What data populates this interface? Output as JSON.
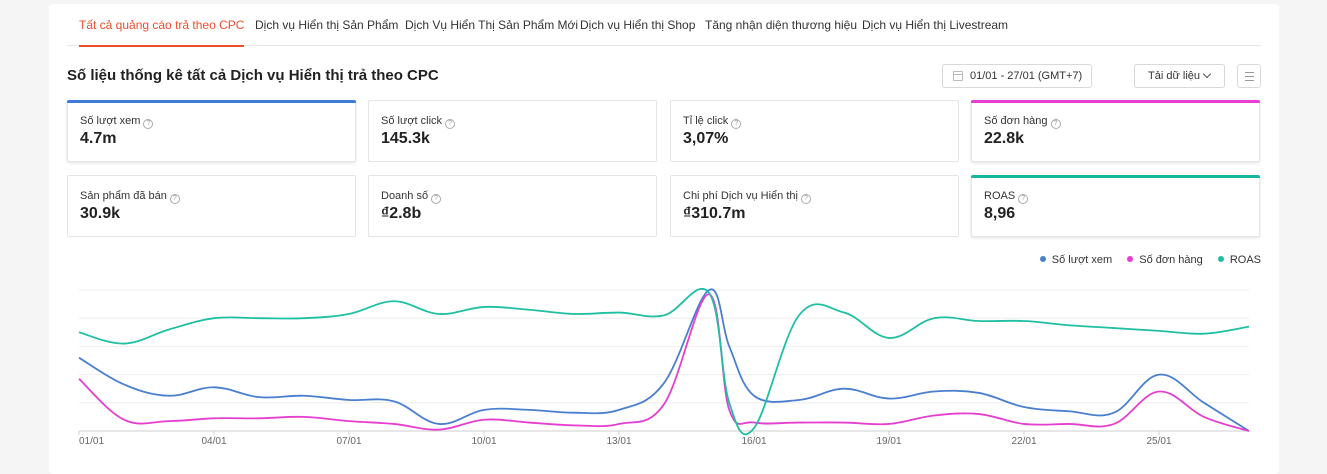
{
  "tabs": [
    {
      "label": "Tất cả quảng cáo trả theo CPC"
    },
    {
      "label": "Dịch vụ Hiển thị Sản Phẩm"
    },
    {
      "label": "Dịch Vụ Hiển Thị Sản Phẩm Mới"
    },
    {
      "label": "Dịch vụ Hiển thị Shop"
    },
    {
      "label": "Tăng nhận diện thương hiệu"
    },
    {
      "label": "Dịch vụ Hiển thị Livestream"
    }
  ],
  "header": {
    "title": "Số liệu thống kê tất cả Dịch vụ Hiển thị trả theo CPC",
    "date_range": "01/01 - 27/01 (GMT+7)",
    "download_label": "Tải dữ liệu"
  },
  "metrics": [
    {
      "label": "Số lượt xem",
      "value": "4.7m",
      "selected": true,
      "color": "#3b7dd8"
    },
    {
      "label": "Số lượt click",
      "value": "145.3k",
      "selected": false
    },
    {
      "label": "Tỉ lệ click",
      "value": "3,07%",
      "selected": false
    },
    {
      "label": "Số đơn hàng",
      "value": "22.8k",
      "selected": true,
      "color": "#e83fd0"
    },
    {
      "label": "Sản phẩm đã bán",
      "value": "30.9k",
      "selected": false
    },
    {
      "label": "Doanh số",
      "value": "₫2.8b",
      "selected": false
    },
    {
      "label": "Chi phí Dịch vụ Hiển thị",
      "value": "₫310.7m",
      "selected": false
    },
    {
      "label": "ROAS",
      "value": "8,96",
      "selected": true,
      "color": "#14b89c"
    }
  ],
  "chart_data": {
    "type": "line",
    "x": [
      "01/01",
      "02/01",
      "03/01",
      "04/01",
      "05/01",
      "06/01",
      "07/01",
      "08/01",
      "09/01",
      "10/01",
      "11/01",
      "12/01",
      "13/01",
      "14/01",
      "15/01",
      "15/01",
      "16/01",
      "17/01",
      "18/01",
      "19/01",
      "20/01",
      "21/01",
      "22/01",
      "23/01",
      "24/01",
      "25/01",
      "26/01",
      "27/01"
    ],
    "x_ticks": [
      "01/01",
      "04/01",
      "07/01",
      "10/01",
      "13/01",
      "16/01",
      "19/01",
      "22/01",
      "25/01"
    ],
    "series": [
      {
        "name": "Số lượt xem",
        "color": "#4a7fd0",
        "values": [
          0.52,
          0.33,
          0.25,
          0.31,
          0.24,
          0.25,
          0.22,
          0.21,
          0.05,
          0.15,
          0.15,
          0.13,
          0.15,
          0.34,
          1.0,
          0.6,
          0.25,
          0.22,
          0.3,
          0.23,
          0.28,
          0.27,
          0.17,
          0.14,
          0.13,
          0.4,
          0.2,
          0.0
        ]
      },
      {
        "name": "Số đơn hàng",
        "color": "#e63fcf",
        "values": [
          0.37,
          0.08,
          0.07,
          0.09,
          0.09,
          0.1,
          0.07,
          0.05,
          0.01,
          0.08,
          0.06,
          0.04,
          0.05,
          0.19,
          0.97,
          0.15,
          0.06,
          0.06,
          0.06,
          0.05,
          0.11,
          0.12,
          0.05,
          0.05,
          0.05,
          0.28,
          0.1,
          0.0
        ]
      },
      {
        "name": "ROAS",
        "color": "#1fbfa2",
        "values": [
          0.7,
          0.62,
          0.72,
          0.8,
          0.8,
          0.8,
          0.83,
          0.92,
          0.83,
          0.88,
          0.86,
          0.83,
          0.84,
          0.82,
          0.98,
          0.2,
          0.02,
          0.82,
          0.84,
          0.66,
          0.8,
          0.78,
          0.78,
          0.75,
          0.73,
          0.71,
          0.69,
          0.74
        ]
      }
    ],
    "ylim": [
      0,
      1
    ],
    "grid": true,
    "legend": "top-right"
  }
}
